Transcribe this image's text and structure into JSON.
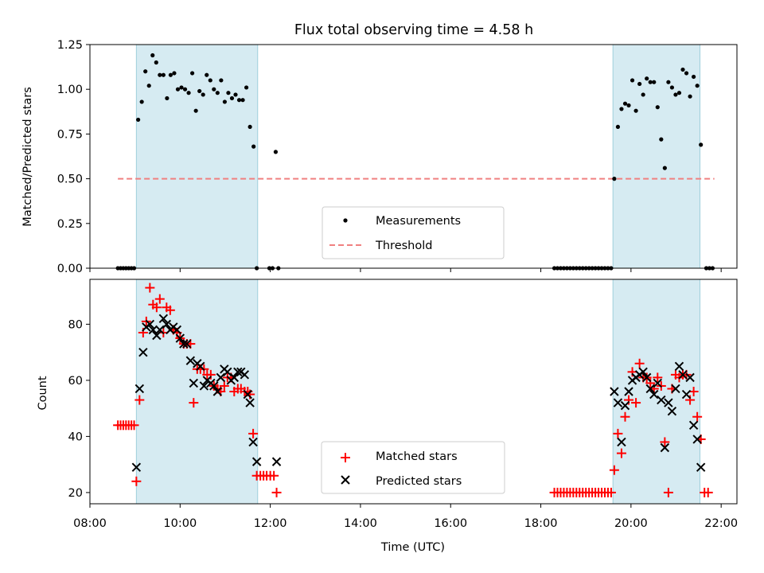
{
  "chart_data": [
    {
      "type": "scatter",
      "title": "Flux total observing time = 4.58 h",
      "ylabel": "Matched/Predicted stars",
      "xlabel": "",
      "xlim": [
        8.0,
        22.35
      ],
      "ylim": [
        0.0,
        1.25
      ],
      "yticks": [
        "0.00",
        "0.25",
        "0.50",
        "0.75",
        "1.00",
        "1.25"
      ],
      "ytick_values": [
        0.0,
        0.25,
        0.5,
        0.75,
        1.0,
        1.25
      ],
      "xticks": [
        8,
        10,
        12,
        14,
        16,
        18,
        20,
        22
      ],
      "grid": false,
      "legend": {
        "position": "lower center",
        "entries": [
          "Measurements",
          "Threshold"
        ]
      },
      "shaded_spans": [
        [
          9.03,
          11.72
        ],
        [
          19.6,
          21.53
        ]
      ],
      "threshold": {
        "name": "Threshold",
        "y": 0.5,
        "x_range": [
          8.62,
          21.85
        ],
        "color": "#f08080"
      },
      "series": [
        {
          "name": "Measurements",
          "color": "#000000",
          "x": [
            8.62,
            8.68,
            8.74,
            8.8,
            8.86,
            8.92,
            8.98,
            9.07,
            9.15,
            9.23,
            9.31,
            9.39,
            9.47,
            9.55,
            9.63,
            9.71,
            9.79,
            9.87,
            9.95,
            10.03,
            10.11,
            10.19,
            10.27,
            10.35,
            10.43,
            10.51,
            10.59,
            10.67,
            10.75,
            10.83,
            10.91,
            10.99,
            11.07,
            11.15,
            11.23,
            11.31,
            11.39,
            11.47,
            11.55,
            11.63,
            11.7,
            11.98,
            12.05,
            12.12,
            12.18,
            18.3,
            18.37,
            18.44,
            18.51,
            18.58,
            18.65,
            18.72,
            18.79,
            18.86,
            18.93,
            19.0,
            19.07,
            19.14,
            19.21,
            19.28,
            19.35,
            19.42,
            19.49,
            19.56,
            19.63,
            19.71,
            19.79,
            19.87,
            19.95,
            20.03,
            20.11,
            20.19,
            20.27,
            20.35,
            20.43,
            20.51,
            20.59,
            20.67,
            20.75,
            20.83,
            20.91,
            20.99,
            21.07,
            21.15,
            21.23,
            21.31,
            21.39,
            21.47,
            21.55,
            21.67,
            21.74,
            21.81
          ],
          "y": [
            0,
            0,
            0,
            0,
            0,
            0,
            0,
            0.83,
            0.93,
            1.1,
            1.02,
            1.19,
            1.15,
            1.08,
            1.08,
            0.95,
            1.08,
            1.09,
            1.0,
            1.01,
            1.0,
            0.98,
            1.09,
            0.88,
            0.99,
            0.97,
            1.08,
            1.05,
            1.0,
            0.98,
            1.05,
            0.93,
            0.98,
            0.95,
            0.97,
            0.94,
            0.94,
            1.01,
            0.79,
            0.68,
            0,
            0,
            0,
            0.65,
            0,
            0,
            0,
            0,
            0,
            0,
            0,
            0,
            0,
            0,
            0,
            0,
            0,
            0,
            0,
            0,
            0,
            0,
            0,
            0,
            0.5,
            0.79,
            0.89,
            0.92,
            0.91,
            1.05,
            0.88,
            1.03,
            0.97,
            1.06,
            1.04,
            1.04,
            0.9,
            0.72,
            0.56,
            1.04,
            1.01,
            0.97,
            0.98,
            1.11,
            1.09,
            0.96,
            1.07,
            1.02,
            0.69,
            0,
            0,
            0
          ]
        }
      ]
    },
    {
      "type": "scatter",
      "title": "",
      "ylabel": "Count",
      "xlabel": "Time (UTC)",
      "xlim": [
        8.0,
        22.35
      ],
      "ylim": [
        16,
        96
      ],
      "yticks": [
        "20",
        "40",
        "60",
        "80"
      ],
      "ytick_values": [
        20,
        40,
        60,
        80
      ],
      "xticks": [
        8,
        10,
        12,
        14,
        16,
        18,
        20,
        22
      ],
      "xtick_labels": [
        "08:00",
        "10:00",
        "12:00",
        "14:00",
        "16:00",
        "18:00",
        "20:00",
        "22:00"
      ],
      "grid": false,
      "legend": {
        "position": "lower center",
        "entries": [
          "Matched stars",
          "Predicted stars"
        ]
      },
      "shaded_spans": [
        [
          9.03,
          11.72
        ],
        [
          19.6,
          21.53
        ]
      ],
      "series": [
        {
          "name": "Matched stars",
          "marker": "plus",
          "color": "#ff0000",
          "x": [
            8.62,
            8.68,
            8.74,
            8.8,
            8.86,
            8.92,
            8.98,
            9.03,
            9.1,
            9.18,
            9.25,
            9.33,
            9.4,
            9.48,
            9.55,
            9.63,
            9.7,
            9.78,
            9.85,
            9.93,
            10.0,
            10.08,
            10.15,
            10.23,
            10.3,
            10.38,
            10.45,
            10.53,
            10.6,
            10.68,
            10.75,
            10.83,
            10.9,
            10.98,
            11.05,
            11.13,
            11.2,
            11.28,
            11.35,
            11.43,
            11.5,
            11.55,
            11.62,
            11.7,
            11.78,
            11.85,
            11.92,
            12.0,
            12.08,
            12.14,
            18.3,
            18.37,
            18.44,
            18.51,
            18.58,
            18.65,
            18.72,
            18.79,
            18.86,
            18.93,
            19.0,
            19.07,
            19.14,
            19.21,
            19.28,
            19.35,
            19.42,
            19.49,
            19.56,
            19.63,
            19.71,
            19.79,
            19.87,
            19.95,
            20.03,
            20.11,
            20.19,
            20.27,
            20.35,
            20.43,
            20.51,
            20.59,
            20.67,
            20.75,
            20.83,
            20.91,
            20.99,
            21.07,
            21.15,
            21.23,
            21.31,
            21.39,
            21.47,
            21.55,
            21.63,
            21.71
          ],
          "y": [
            44,
            44,
            44,
            44,
            44,
            44,
            44,
            24,
            53,
            77,
            81,
            93,
            87,
            86,
            89,
            77,
            86,
            85,
            78,
            77,
            75,
            73,
            73,
            73,
            52,
            64,
            64,
            64,
            62,
            62,
            58,
            57,
            56,
            58,
            61,
            61,
            56,
            57,
            57,
            56,
            56,
            55,
            41,
            26,
            26,
            26,
            26,
            26,
            26,
            20,
            20,
            20,
            20,
            20,
            20,
            20,
            20,
            20,
            20,
            20,
            20,
            20,
            20,
            20,
            20,
            20,
            20,
            20,
            20,
            28,
            41,
            34,
            47,
            53,
            63,
            52,
            66,
            61,
            61,
            59,
            57,
            61,
            58,
            38,
            20,
            57,
            62,
            61,
            62,
            62,
            53,
            56,
            47,
            39,
            20,
            20
          ]
        },
        {
          "name": "Predicted stars",
          "marker": "x",
          "color": "#000000",
          "x": [
            9.03,
            9.1,
            9.18,
            9.25,
            9.33,
            9.4,
            9.48,
            9.55,
            9.63,
            9.7,
            9.78,
            9.85,
            9.93,
            10.0,
            10.08,
            10.15,
            10.23,
            10.3,
            10.38,
            10.45,
            10.53,
            10.6,
            10.68,
            10.75,
            10.83,
            10.9,
            10.98,
            11.05,
            11.13,
            11.2,
            11.28,
            11.35,
            11.43,
            11.5,
            11.55,
            11.62,
            11.7,
            12.14,
            19.63,
            19.71,
            19.79,
            19.87,
            19.95,
            20.03,
            20.11,
            20.19,
            20.27,
            20.35,
            20.43,
            20.51,
            20.59,
            20.67,
            20.75,
            20.83,
            20.91,
            20.99,
            21.07,
            21.15,
            21.23,
            21.31,
            21.39,
            21.47,
            21.55
          ],
          "y": [
            29,
            57,
            70,
            79,
            80,
            78,
            76,
            78,
            82,
            80,
            78,
            79,
            78,
            75,
            73,
            73,
            67,
            59,
            66,
            65,
            58,
            60,
            59,
            58,
            56,
            61,
            64,
            63,
            60,
            61,
            63,
            63,
            62,
            55,
            52,
            38,
            31,
            31,
            56,
            52,
            38,
            51,
            56,
            60,
            61,
            62,
            63,
            61,
            57,
            55,
            59,
            53,
            36,
            52,
            49,
            57,
            65,
            62,
            55,
            61,
            44,
            39,
            29
          ]
        }
      ]
    }
  ]
}
